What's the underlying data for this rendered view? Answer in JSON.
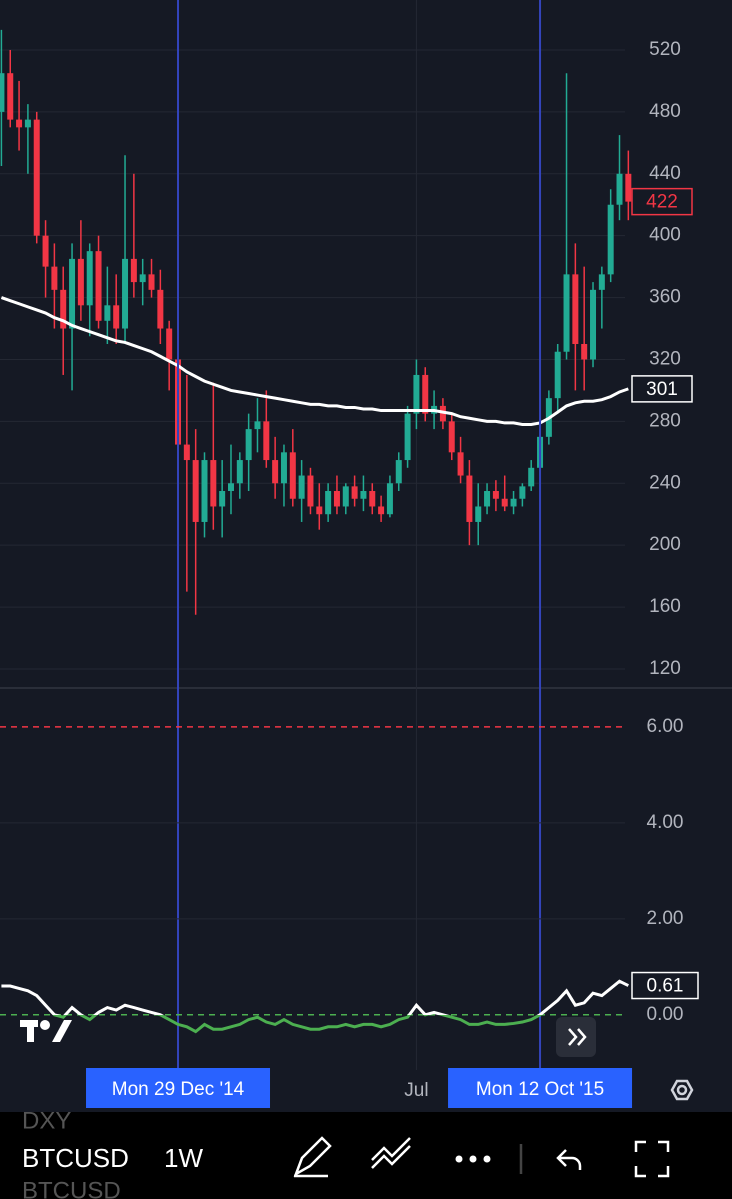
{
  "chart_data": [
    {
      "type": "candlestick",
      "up_color": "#22ab94",
      "down_color": "#f23645",
      "candles": [
        [
          480,
          533,
          445,
          505
        ],
        [
          505,
          520,
          470,
          475
        ],
        [
          475,
          500,
          455,
          470
        ],
        [
          470,
          485,
          440,
          475
        ],
        [
          475,
          480,
          395,
          400
        ],
        [
          400,
          410,
          360,
          380
        ],
        [
          380,
          395,
          340,
          365
        ],
        [
          365,
          380,
          310,
          340
        ],
        [
          340,
          395,
          300,
          385
        ],
        [
          385,
          410,
          345,
          355
        ],
        [
          355,
          395,
          335,
          390
        ],
        [
          390,
          400,
          340,
          345
        ],
        [
          345,
          380,
          330,
          355
        ],
        [
          355,
          375,
          330,
          340
        ],
        [
          340,
          452,
          330,
          385
        ],
        [
          385,
          440,
          360,
          370
        ],
        [
          370,
          385,
          355,
          375
        ],
        [
          375,
          385,
          360,
          365
        ],
        [
          365,
          378,
          330,
          340
        ],
        [
          340,
          345,
          300,
          320
        ],
        [
          320,
          325,
          245,
          265
        ],
        [
          265,
          310,
          170,
          255
        ],
        [
          255,
          275,
          155,
          215
        ],
        [
          215,
          260,
          205,
          255
        ],
        [
          255,
          305,
          210,
          225
        ],
        [
          225,
          255,
          205,
          235
        ],
        [
          235,
          265,
          220,
          240
        ],
        [
          240,
          260,
          230,
          255
        ],
        [
          255,
          285,
          235,
          275
        ],
        [
          275,
          295,
          260,
          280
        ],
        [
          280,
          300,
          250,
          255
        ],
        [
          255,
          270,
          230,
          240
        ],
        [
          240,
          265,
          225,
          260
        ],
        [
          260,
          275,
          225,
          230
        ],
        [
          230,
          255,
          215,
          245
        ],
        [
          245,
          250,
          220,
          225
        ],
        [
          225,
          240,
          210,
          220
        ],
        [
          220,
          240,
          215,
          235
        ],
        [
          235,
          245,
          220,
          225
        ],
        [
          225,
          240,
          220,
          238
        ],
        [
          238,
          245,
          225,
          230
        ],
        [
          230,
          245,
          222,
          235
        ],
        [
          235,
          240,
          220,
          225
        ],
        [
          225,
          232,
          215,
          220
        ],
        [
          220,
          245,
          218,
          240
        ],
        [
          240,
          260,
          235,
          255
        ],
        [
          255,
          290,
          250,
          285
        ],
        [
          285,
          320,
          275,
          310
        ],
        [
          310,
          315,
          280,
          285
        ],
        [
          285,
          300,
          275,
          290
        ],
        [
          290,
          295,
          275,
          280
        ],
        [
          280,
          285,
          255,
          260
        ],
        [
          260,
          270,
          240,
          245
        ],
        [
          245,
          255,
          200,
          215
        ],
        [
          215,
          240,
          200,
          225
        ],
        [
          225,
          240,
          220,
          235
        ],
        [
          235,
          242,
          222,
          230
        ],
        [
          230,
          245,
          222,
          225
        ],
        [
          225,
          235,
          220,
          230
        ],
        [
          230,
          240,
          225,
          238
        ],
        [
          238,
          255,
          235,
          250
        ],
        [
          250,
          275,
          245,
          270
        ],
        [
          270,
          300,
          265,
          295
        ],
        [
          295,
          330,
          285,
          325
        ],
        [
          325,
          505,
          320,
          375
        ],
        [
          375,
          395,
          300,
          330
        ],
        [
          330,
          380,
          300,
          320
        ],
        [
          320,
          370,
          315,
          365
        ],
        [
          365,
          380,
          340,
          375
        ],
        [
          375,
          430,
          370,
          420
        ],
        [
          420,
          465,
          410,
          440
        ],
        [
          440,
          455,
          410,
          422
        ]
      ],
      "ma": {
        "color": "#ffffff",
        "values": [
          360,
          358,
          356,
          354,
          352,
          350,
          347,
          345,
          342,
          340,
          338,
          336,
          334,
          332,
          331,
          329,
          327,
          325,
          322,
          319,
          316,
          312,
          309,
          306,
          304,
          302,
          300,
          299,
          298,
          297,
          296,
          295,
          294,
          293,
          292,
          291,
          291,
          290,
          290,
          289,
          289,
          288,
          288,
          287,
          287,
          287,
          287,
          287,
          287,
          287,
          286,
          285,
          283,
          282,
          281,
          280,
          280,
          279,
          279,
          278,
          278,
          279,
          282,
          286,
          290,
          292,
          293,
          293,
          294,
          296,
          299,
          301
        ]
      },
      "xlim": [
        -0.16,
        82.74
      ],
      "xticks": [
        {
          "value": 47,
          "label": "Jul"
        }
      ],
      "ylim": [
        107.7,
        552.3
      ],
      "yticks": [
        120,
        160,
        200,
        240,
        280,
        320,
        360,
        400,
        440,
        480,
        520
      ],
      "grid": true,
      "crosshairs": [
        {
          "x": 20,
          "label": "Mon 29 Dec '14"
        },
        {
          "x": 61,
          "label": "Mon 12 Oct '15"
        }
      ],
      "crosshair_color": "#3344bb"
    },
    {
      "type": "line",
      "color_above": "#ffffff",
      "color_below": "#4caf50",
      "values": [
        0.6,
        0.6,
        0.55,
        0.5,
        0.4,
        0.2,
        0.0,
        -0.05,
        0.15,
        0.0,
        -0.1,
        0.05,
        0.15,
        0.1,
        0.2,
        0.15,
        0.1,
        0.05,
        0.0,
        -0.1,
        -0.2,
        -0.25,
        -0.35,
        -0.2,
        -0.3,
        -0.3,
        -0.25,
        -0.2,
        -0.1,
        -0.05,
        -0.15,
        -0.2,
        -0.1,
        -0.2,
        -0.25,
        -0.3,
        -0.3,
        -0.25,
        -0.25,
        -0.2,
        -0.25,
        -0.2,
        -0.2,
        -0.25,
        -0.2,
        -0.1,
        -0.05,
        0.2,
        0.0,
        0.05,
        0.0,
        -0.05,
        -0.1,
        -0.2,
        -0.2,
        -0.15,
        -0.2,
        -0.2,
        -0.18,
        -0.15,
        -0.1,
        0.0,
        0.15,
        0.3,
        0.5,
        0.2,
        0.25,
        0.45,
        0.4,
        0.55,
        0.7,
        0.61
      ],
      "xlim": [
        -0.16,
        82.74
      ],
      "ylim": [
        -1.15,
        6.81
      ],
      "yticks": [
        {
          "value": 6,
          "label": "6.00",
          "dash_color": "#f23645"
        },
        {
          "value": 4,
          "label": "4.00"
        },
        {
          "value": 2,
          "label": "2.00"
        },
        {
          "value": 0,
          "label": "0.00",
          "dash_color": "#4caf50"
        }
      ],
      "grid": true
    }
  ],
  "toolbar": {
    "symbol": "BTCUSD",
    "interval": "1W"
  },
  "ghost_list": [
    "DXY",
    "BTCUSD"
  ]
}
